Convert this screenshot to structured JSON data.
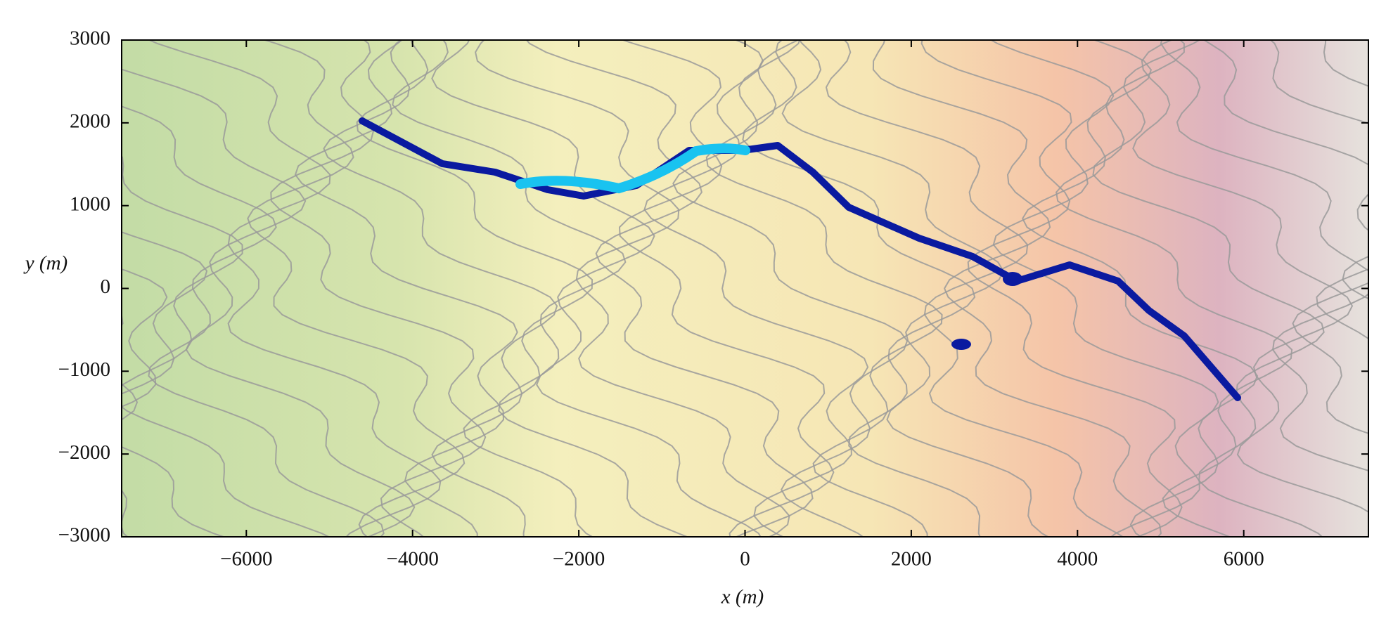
{
  "chart_data": {
    "type": "contour",
    "xlabel": "x (m)",
    "ylabel": "y (m)",
    "xlim": [
      -7500,
      7500
    ],
    "ylim": [
      -3000,
      3000
    ],
    "xticks": [
      {
        "value": -6000,
        "label": "−6000"
      },
      {
        "value": -4000,
        "label": "−4000"
      },
      {
        "value": -2000,
        "label": "−2000"
      },
      0,
      2000,
      4000,
      6000
    ],
    "yticks": [
      {
        "value": -3000,
        "label": "−3000"
      },
      {
        "value": -2000,
        "label": "−2000"
      },
      {
        "value": -1000,
        "label": "−1000"
      },
      0,
      1000,
      2000,
      3000
    ]
  }
}
